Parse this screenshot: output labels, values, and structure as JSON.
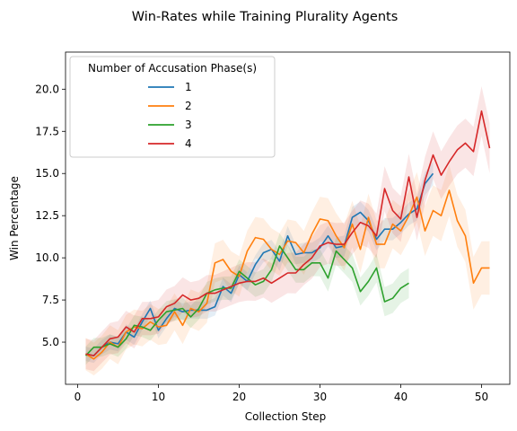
{
  "chart_data": {
    "type": "line",
    "title": "Win-Rates while Training Plurality Agents",
    "xlabel": "Collection Step",
    "ylabel": "Win Percentage",
    "xlim": [
      -1.5,
      53.5
    ],
    "ylim": [
      2.5,
      22.2
    ],
    "xticks": [
      0,
      10,
      20,
      30,
      40,
      50
    ],
    "yticks": [
      5.0,
      7.5,
      10.0,
      12.5,
      15.0,
      17.5,
      20.0
    ],
    "ytick_labels": [
      "5.0",
      "7.5",
      "10.0",
      "12.5",
      "15.0",
      "17.5",
      "20.0"
    ],
    "grid": false,
    "legend": {
      "title": "Number of Accusation Phase(s)",
      "location": "upper-left"
    },
    "series": [
      {
        "name": "1",
        "color": "#1f77b4",
        "x": [
          1,
          2,
          3,
          4,
          5,
          6,
          7,
          8,
          9,
          10,
          11,
          12,
          13,
          14,
          15,
          16,
          17,
          18,
          19,
          20,
          21,
          22,
          23,
          24,
          25,
          26,
          27,
          28,
          29,
          30,
          31,
          32,
          33,
          34,
          35,
          36,
          37,
          38,
          39,
          40,
          41,
          42,
          43,
          44
        ],
        "values": [
          4.3,
          4.2,
          4.7,
          5.0,
          4.9,
          5.6,
          5.3,
          6.2,
          7.0,
          5.7,
          6.4,
          7.0,
          6.8,
          6.9,
          6.9,
          6.9,
          7.1,
          8.3,
          7.9,
          9.0,
          8.6,
          9.6,
          10.3,
          10.5,
          9.8,
          11.3,
          10.2,
          10.3,
          10.3,
          10.6,
          11.3,
          10.6,
          10.7,
          12.4,
          12.7,
          12.2,
          11.1,
          11.7,
          11.7,
          12.1,
          12.6,
          12.9,
          14.4,
          15.0
        ],
        "band": 0.7
      },
      {
        "name": "2",
        "color": "#ff7f0e",
        "x": [
          1,
          2,
          3,
          4,
          5,
          6,
          7,
          8,
          9,
          10,
          11,
          12,
          13,
          14,
          15,
          16,
          17,
          18,
          19,
          20,
          21,
          22,
          23,
          24,
          25,
          26,
          27,
          28,
          29,
          30,
          31,
          32,
          33,
          34,
          35,
          36,
          37,
          38,
          39,
          40,
          41,
          42,
          43,
          44,
          45,
          46,
          47,
          48,
          49,
          50,
          51
        ],
        "values": [
          4.3,
          4.0,
          4.4,
          5.0,
          4.7,
          5.6,
          5.9,
          5.8,
          6.2,
          5.9,
          6.0,
          6.8,
          6.0,
          7.0,
          6.8,
          7.3,
          9.7,
          9.9,
          9.2,
          8.9,
          10.4,
          11.2,
          11.1,
          10.5,
          10.2,
          11.0,
          10.9,
          10.3,
          11.4,
          12.3,
          12.2,
          11.3,
          10.6,
          12.0,
          10.5,
          12.4,
          10.8,
          10.8,
          12.0,
          11.6,
          12.5,
          13.6,
          11.6,
          12.8,
          12.5,
          14.0,
          12.2,
          11.3,
          8.5,
          9.4,
          9.4
        ],
        "band": 1.6
      },
      {
        "name": "3",
        "color": "#2ca02c",
        "x": [
          1,
          2,
          3,
          4,
          5,
          6,
          7,
          8,
          9,
          10,
          11,
          12,
          13,
          14,
          15,
          16,
          17,
          18,
          19,
          20,
          21,
          22,
          23,
          24,
          25,
          26,
          27,
          28,
          29,
          30,
          31,
          32,
          33,
          34,
          35,
          36,
          37,
          38,
          39,
          40,
          41
        ],
        "values": [
          4.2,
          4.7,
          4.7,
          4.9,
          4.7,
          5.2,
          6.0,
          5.9,
          5.7,
          6.3,
          6.8,
          6.9,
          7.0,
          6.5,
          7.0,
          7.9,
          8.1,
          8.2,
          8.2,
          9.2,
          8.8,
          8.4,
          8.6,
          9.3,
          10.7,
          10.0,
          9.3,
          9.3,
          9.7,
          9.7,
          8.8,
          10.4,
          9.9,
          9.4,
          8.0,
          8.6,
          9.4,
          7.4,
          7.6,
          8.2,
          8.5
        ],
        "band": 0.9
      },
      {
        "name": "4",
        "color": "#d62728",
        "x": [
          1,
          2,
          3,
          4,
          5,
          6,
          7,
          8,
          9,
          10,
          11,
          12,
          13,
          14,
          15,
          16,
          17,
          18,
          19,
          20,
          21,
          22,
          23,
          24,
          25,
          26,
          27,
          28,
          29,
          30,
          31,
          32,
          33,
          34,
          35,
          36,
          37,
          38,
          39,
          40,
          41,
          42,
          43,
          44,
          45,
          46,
          47,
          48,
          49,
          50,
          51
        ],
        "values": [
          4.3,
          4.2,
          4.7,
          5.2,
          5.3,
          5.9,
          5.6,
          6.4,
          6.4,
          6.5,
          7.1,
          7.3,
          7.8,
          7.5,
          7.6,
          7.9,
          7.9,
          8.1,
          8.3,
          8.5,
          8.6,
          8.6,
          8.8,
          8.5,
          8.8,
          9.1,
          9.1,
          9.6,
          10.0,
          10.7,
          10.9,
          10.8,
          10.8,
          11.5,
          12.1,
          11.9,
          11.3,
          14.1,
          12.8,
          12.3,
          14.8,
          12.4,
          14.6,
          16.1,
          14.9,
          15.7,
          16.4,
          16.8,
          16.3,
          18.7,
          16.5
        ],
        "band": 1.5
      }
    ]
  }
}
